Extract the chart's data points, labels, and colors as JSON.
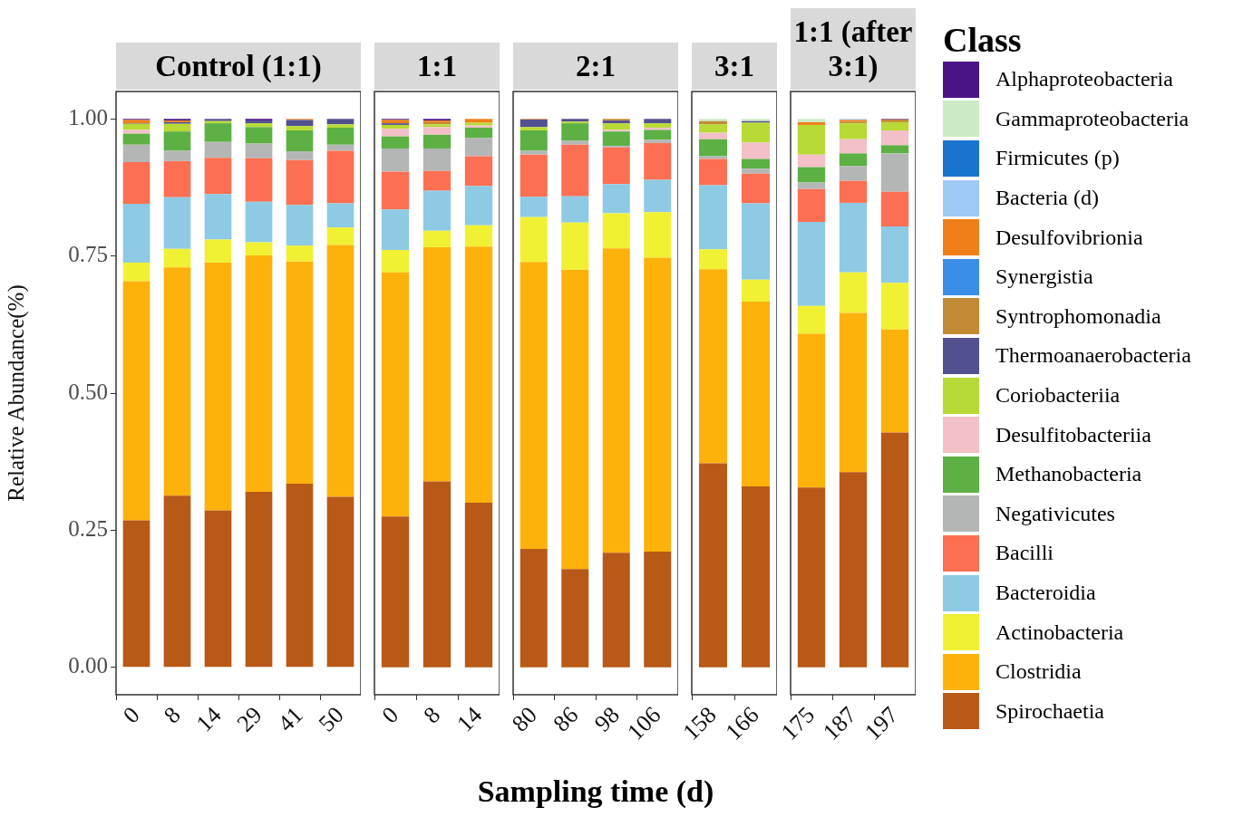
{
  "chart_data": [
    {
      "type": "bar",
      "stacked": true,
      "title": "Control (1:1)",
      "ylabel": "Relative Abundance(%)",
      "categories": [
        "0",
        "8",
        "14",
        "29",
        "41",
        "50"
      ],
      "ylim": [
        -0.05,
        1.05
      ],
      "yticks": [
        {
          "value": 0,
          "label": "0.00"
        },
        {
          "value": 0.25,
          "label": "0.25"
        },
        {
          "value": 0.5,
          "label": "0.50"
        },
        {
          "value": 0.75,
          "label": "0.75"
        },
        {
          "value": 1,
          "label": "1.00"
        }
      ],
      "series": [
        {
          "color": "#b95917",
          "values": [
            0.268,
            0.313,
            0.286,
            0.32,
            0.335,
            0.311
          ]
        },
        {
          "color": "#fdb20b",
          "values": [
            0.436,
            0.416,
            0.452,
            0.431,
            0.405,
            0.459
          ]
        },
        {
          "color": "#f1f134",
          "values": [
            0.034,
            0.034,
            0.042,
            0.024,
            0.029,
            0.032
          ]
        },
        {
          "color": "#8ecae3",
          "values": [
            0.107,
            0.094,
            0.083,
            0.074,
            0.074,
            0.044
          ]
        },
        {
          "color": "#fd6f52",
          "values": [
            0.076,
            0.066,
            0.066,
            0.079,
            0.082,
            0.096
          ]
        },
        {
          "color": "#b4b6b5",
          "values": [
            0.032,
            0.019,
            0.029,
            0.027,
            0.016,
            0.011
          ]
        },
        {
          "color": "#5cb044",
          "values": [
            0.02,
            0.035,
            0.034,
            0.03,
            0.038,
            0.031
          ]
        },
        {
          "color": "#f2c0c6",
          "values": [
            0.007,
            0,
            0,
            0,
            0,
            0
          ]
        },
        {
          "color": "#b8da36",
          "values": [
            0.011,
            0.014,
            0.004,
            0.007,
            0.008,
            0.006
          ]
        },
        {
          "color": "#53508f",
          "values": [
            0.001,
            0.003,
            0.004,
            0.005,
            0.011,
            0.01
          ]
        },
        {
          "color": "#c38a35",
          "values": [
            0,
            0,
            0,
            0,
            0,
            0
          ]
        },
        {
          "color": "#3a8ee6",
          "values": [
            0,
            0,
            0,
            0,
            0,
            0
          ]
        },
        {
          "color": "#f07f19",
          "values": [
            0.006,
            0.003,
            0,
            0,
            0.002,
            0
          ]
        },
        {
          "color": "#9fc9f7",
          "values": [
            0,
            0,
            0,
            0,
            0,
            0
          ]
        },
        {
          "color": "#1874cd",
          "values": [
            0,
            0,
            0,
            0,
            0,
            0
          ]
        },
        {
          "color": "#ccebc5",
          "values": [
            0,
            0,
            0,
            0,
            0,
            0
          ]
        },
        {
          "color": "#4a1486",
          "values": [
            0.002,
            0.003,
            0,
            0.003,
            0,
            0
          ]
        }
      ]
    },
    {
      "type": "bar",
      "stacked": true,
      "title": "1:1",
      "tick_labels": "x",
      "categories": [
        "0",
        "8",
        "14"
      ],
      "ylim": [
        -0.05,
        1.05
      ],
      "series": [
        {
          "color": "#b95917",
          "values": [
            0.275,
            0.339,
            0.3
          ]
        },
        {
          "color": "#fdb20b",
          "values": [
            0.445,
            0.427,
            0.467
          ]
        },
        {
          "color": "#f1f134",
          "values": [
            0.041,
            0.03,
            0.039
          ]
        },
        {
          "color": "#8ecae3",
          "values": [
            0.074,
            0.073,
            0.072
          ]
        },
        {
          "color": "#fd6f52",
          "values": [
            0.069,
            0.036,
            0.054
          ]
        },
        {
          "color": "#b4b6b5",
          "values": [
            0.042,
            0.041,
            0.033
          ]
        },
        {
          "color": "#5cb044",
          "values": [
            0.022,
            0.025,
            0.019
          ]
        },
        {
          "color": "#f2c0c6",
          "values": [
            0.014,
            0.014,
            0.004
          ]
        },
        {
          "color": "#b8da36",
          "values": [
            0.007,
            0.005,
            0.005
          ]
        },
        {
          "color": "#53508f",
          "values": [
            0.003,
            0,
            0
          ]
        },
        {
          "color": "#c38a35",
          "values": [
            0,
            0.004,
            0
          ]
        },
        {
          "color": "#3a8ee6",
          "values": [
            0,
            0,
            0
          ]
        },
        {
          "color": "#f07f19",
          "values": [
            0.006,
            0.003,
            0.007
          ]
        },
        {
          "color": "#9fc9f7",
          "values": [
            0,
            0,
            0
          ]
        },
        {
          "color": "#1874cd",
          "values": [
            0,
            0,
            0
          ]
        },
        {
          "color": "#ccebc5",
          "values": [
            0,
            0,
            0
          ]
        },
        {
          "color": "#4a1486",
          "values": [
            0.002,
            0.003,
            0
          ]
        }
      ]
    },
    {
      "type": "bar",
      "stacked": true,
      "title": "2:1",
      "tick_labels": "x",
      "xlabel": "Sampling time (d)",
      "categories": [
        "80",
        "86",
        "98",
        "106"
      ],
      "ylim": [
        -0.05,
        1.05
      ],
      "series": [
        {
          "color": "#b95917",
          "values": [
            0.216,
            0.179,
            0.209,
            0.211
          ]
        },
        {
          "color": "#fdb20b",
          "values": [
            0.523,
            0.546,
            0.555,
            0.536
          ]
        },
        {
          "color": "#f1f134",
          "values": [
            0.082,
            0.086,
            0.064,
            0.083
          ]
        },
        {
          "color": "#8ecae3",
          "values": [
            0.037,
            0.048,
            0.053,
            0.059
          ]
        },
        {
          "color": "#fd6f52",
          "values": [
            0.077,
            0.094,
            0.067,
            0.067
          ]
        },
        {
          "color": "#b4b6b5",
          "values": [
            0.007,
            0.007,
            0.003,
            0.006
          ]
        },
        {
          "color": "#5cb044",
          "values": [
            0.037,
            0.032,
            0.026,
            0.018
          ]
        },
        {
          "color": "#f2c0c6",
          "values": [
            0,
            0,
            0.003,
            0.004
          ]
        },
        {
          "color": "#b8da36",
          "values": [
            0.006,
            0.003,
            0.012,
            0.008
          ]
        },
        {
          "color": "#53508f",
          "values": [
            0.014,
            0.005,
            0.005,
            0.008
          ]
        },
        {
          "color": "#c38a35",
          "values": [
            0,
            0,
            0.003,
            0
          ]
        },
        {
          "color": "#3a8ee6",
          "values": [
            0,
            0,
            0,
            0
          ]
        },
        {
          "color": "#f07f19",
          "values": [
            0.001,
            0,
            0,
            0
          ]
        },
        {
          "color": "#9fc9f7",
          "values": [
            0,
            0,
            0,
            0
          ]
        },
        {
          "color": "#1874cd",
          "values": [
            0,
            0,
            0,
            0
          ]
        },
        {
          "color": "#ccebc5",
          "values": [
            0,
            0,
            0,
            0
          ]
        },
        {
          "color": "#4a1486",
          "values": [
            0,
            0,
            0,
            0
          ]
        }
      ]
    },
    {
      "type": "bar",
      "stacked": true,
      "title": "3:1",
      "tick_labels": "x",
      "categories": [
        "158",
        "166"
      ],
      "ylim": [
        -0.05,
        1.05
      ],
      "series": [
        {
          "color": "#b95917",
          "values": [
            0.372,
            0.33
          ]
        },
        {
          "color": "#fdb20b",
          "values": [
            0.354,
            0.337
          ]
        },
        {
          "color": "#f1f134",
          "values": [
            0.036,
            0.04
          ]
        },
        {
          "color": "#8ecae3",
          "values": [
            0.117,
            0.139
          ]
        },
        {
          "color": "#fd6f52",
          "values": [
            0.048,
            0.054
          ]
        },
        {
          "color": "#b4b6b5",
          "values": [
            0.005,
            0.009
          ]
        },
        {
          "color": "#5cb044",
          "values": [
            0.031,
            0.018
          ]
        },
        {
          "color": "#f2c0c6",
          "values": [
            0.012,
            0.03
          ]
        },
        {
          "color": "#b8da36",
          "values": [
            0.015,
            0.036
          ]
        },
        {
          "color": "#53508f",
          "values": [
            0,
            0.003
          ]
        },
        {
          "color": "#c38a35",
          "values": [
            0.006,
            0
          ]
        },
        {
          "color": "#3a8ee6",
          "values": [
            0,
            0
          ]
        },
        {
          "color": "#f07f19",
          "values": [
            0,
            0
          ]
        },
        {
          "color": "#9fc9f7",
          "values": [
            0,
            0
          ]
        },
        {
          "color": "#1874cd",
          "values": [
            0,
            0
          ]
        },
        {
          "color": "#ccebc5",
          "values": [
            0.004,
            0.004
          ]
        },
        {
          "color": "#4a1486",
          "values": [
            0,
            0
          ]
        }
      ]
    },
    {
      "type": "bar",
      "stacked": true,
      "title": "1:1 (after 3:1)",
      "tick_labels": "x",
      "legend": "right",
      "legend_title": "Class",
      "categories": [
        "175",
        "187",
        "197"
      ],
      "ylim": [
        -0.05,
        1.05
      ],
      "series": [
        {
          "name": "Spirochaetia",
          "color": "#b95917",
          "values": [
            0.328,
            0.356,
            0.428
          ]
        },
        {
          "name": "Clostridia",
          "color": "#fdb20b",
          "values": [
            0.28,
            0.29,
            0.188
          ]
        },
        {
          "name": "Actinobacteria",
          "color": "#f1f134",
          "values": [
            0.051,
            0.074,
            0.085
          ]
        },
        {
          "name": "Bacteroidia",
          "color": "#8ecae3",
          "values": [
            0.153,
            0.127,
            0.103
          ]
        },
        {
          "name": "Bacilli",
          "color": "#fd6f52",
          "values": [
            0.06,
            0.04,
            0.063
          ]
        },
        {
          "name": "Negativicutes",
          "color": "#b4b6b5",
          "values": [
            0.012,
            0.027,
            0.07
          ]
        },
        {
          "name": "Methanobacteria",
          "color": "#5cb044",
          "values": [
            0.028,
            0.023,
            0.015
          ]
        },
        {
          "name": "Desulfitobacteriia",
          "color": "#f2c0c6",
          "values": [
            0.023,
            0.026,
            0.027
          ]
        },
        {
          "name": "Coriobacteriia",
          "color": "#b8da36",
          "values": [
            0.054,
            0.029,
            0.015
          ]
        },
        {
          "name": "Thermoanaerobacteria",
          "color": "#53508f",
          "values": [
            0,
            0,
            0
          ]
        },
        {
          "name": "Syntrophomonadia",
          "color": "#c38a35",
          "values": [
            0,
            0.003,
            0.005
          ]
        },
        {
          "name": "Synergistia",
          "color": "#3a8ee6",
          "values": [
            0,
            0,
            0
          ]
        },
        {
          "name": "Desulfovibrionia",
          "color": "#f07f19",
          "values": [
            0.005,
            0.003,
            0
          ]
        },
        {
          "name": "Bacteria (d)",
          "color": "#9fc9f7",
          "values": [
            0,
            0.002,
            0
          ]
        },
        {
          "name": "Firmicutes (p)",
          "color": "#1874cd",
          "values": [
            0,
            0,
            0
          ]
        },
        {
          "name": "Gammaproteobacteria",
          "color": "#ccebc5",
          "values": [
            0.006,
            0,
            0
          ]
        },
        {
          "name": "Alphaproteobacteria",
          "color": "#4a1486",
          "values": [
            0,
            0,
            0.001
          ]
        }
      ]
    }
  ]
}
